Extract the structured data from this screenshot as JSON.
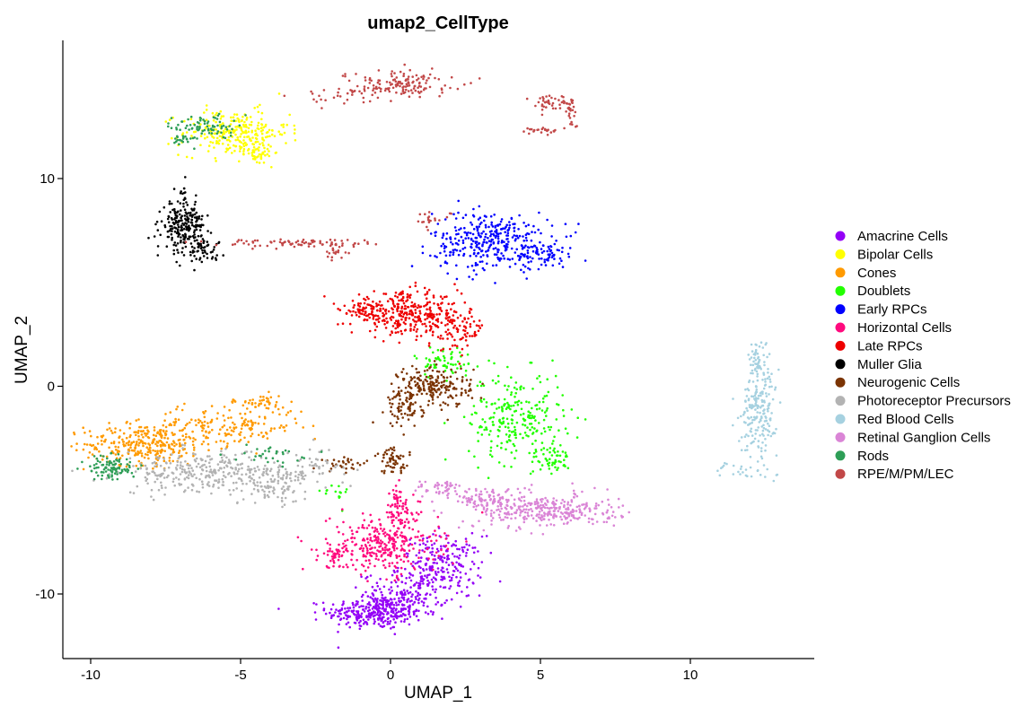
{
  "chart_data": {
    "type": "scatter",
    "title": "umap2_CellType",
    "xlabel": "UMAP_1",
    "ylabel": "UMAP_2",
    "xlim": [
      -11,
      14
    ],
    "ylim": [
      -13,
      16.5
    ],
    "x_ticks": [
      -10,
      -5,
      0,
      5,
      10
    ],
    "y_ticks": [
      -10,
      0,
      10
    ],
    "x_tick_labels": [
      "-10",
      "-5",
      "0",
      "5",
      "10"
    ],
    "y_tick_labels": [
      "-10",
      "0",
      "10"
    ],
    "grid": false,
    "legend_position": "right",
    "series": [
      {
        "name": "Amacrine Cells",
        "color": "#9400F7",
        "clusters": [
          {
            "cx": -0.5,
            "cy": -10.9,
            "sx": 0.8,
            "sy": 0.4,
            "n": 300
          },
          {
            "cx": 1.7,
            "cy": -8.6,
            "sx": 0.7,
            "sy": 0.7,
            "n": 220
          },
          {
            "cx": 0.5,
            "cy": -10.0,
            "sx": 0.7,
            "sy": 0.5,
            "n": 150
          }
        ]
      },
      {
        "name": "Bipolar Cells",
        "color": "#FFFF00",
        "clusters": [
          {
            "cx": -5.2,
            "cy": 12.2,
            "sx": 0.9,
            "sy": 0.55,
            "n": 260
          },
          {
            "cx": -4.5,
            "cy": 11.3,
            "sx": 0.3,
            "sy": 0.3,
            "n": 50
          }
        ]
      },
      {
        "name": "Cones",
        "color": "#FF9A00",
        "clusters": [
          {
            "cx": -8.2,
            "cy": -2.8,
            "sx": 1.0,
            "sy": 0.5,
            "n": 300
          },
          {
            "cx": -5.5,
            "cy": -1.9,
            "sx": 1.3,
            "sy": 0.5,
            "n": 180
          },
          {
            "cx": -4.3,
            "cy": -0.8,
            "sx": 0.4,
            "sy": 0.2,
            "n": 40
          }
        ]
      },
      {
        "name": "Doublets",
        "color": "#22FF00",
        "clusters": [
          {
            "cx": 4.2,
            "cy": -1.5,
            "sx": 0.8,
            "sy": 1.1,
            "n": 250
          },
          {
            "cx": 5.4,
            "cy": -3.5,
            "sx": 0.3,
            "sy": 0.3,
            "n": 50
          },
          {
            "cx": 1.8,
            "cy": 1.2,
            "sx": 0.5,
            "sy": 0.4,
            "n": 60
          },
          {
            "cx": -2.0,
            "cy": -5.2,
            "sx": 0.3,
            "sy": 0.3,
            "n": 15
          }
        ]
      },
      {
        "name": "Early RPCs",
        "color": "#0000FF",
        "clusters": [
          {
            "cx": 3.4,
            "cy": 7.0,
            "sx": 1.0,
            "sy": 0.7,
            "n": 350
          },
          {
            "cx": 5.2,
            "cy": 6.3,
            "sx": 0.5,
            "sy": 0.3,
            "n": 60
          }
        ]
      },
      {
        "name": "Horizontal Cells",
        "color": "#FF0A7E",
        "clusters": [
          {
            "cx": -0.2,
            "cy": -7.6,
            "sx": 0.9,
            "sy": 0.7,
            "n": 320
          },
          {
            "cx": -1.8,
            "cy": -8.1,
            "sx": 0.3,
            "sy": 0.3,
            "n": 40
          },
          {
            "cx": 0.2,
            "cy": -5.8,
            "sx": 0.3,
            "sy": 0.5,
            "n": 60
          }
        ]
      },
      {
        "name": "Late RPCs",
        "color": "#EE0000",
        "clusters": [
          {
            "cx": 0.5,
            "cy": 3.5,
            "sx": 0.9,
            "sy": 0.5,
            "n": 320
          },
          {
            "cx": 2.2,
            "cy": 2.8,
            "sx": 0.5,
            "sy": 0.5,
            "n": 100
          },
          {
            "cx": -1.0,
            "cy": 3.7,
            "sx": 0.3,
            "sy": 0.2,
            "n": 40
          }
        ]
      },
      {
        "name": "Muller Glia",
        "color": "#000000",
        "clusters": [
          {
            "cx": -6.9,
            "cy": 7.7,
            "sx": 0.35,
            "sy": 0.6,
            "n": 220
          },
          {
            "cx": -6.3,
            "cy": 6.6,
            "sx": 0.35,
            "sy": 0.25,
            "n": 50
          },
          {
            "cx": -6.9,
            "cy": 9.3,
            "sx": 0.05,
            "sy": 0.4,
            "n": 12
          }
        ]
      },
      {
        "name": "Neurogenic Cells",
        "color": "#7B3404",
        "clusters": [
          {
            "cx": 1.5,
            "cy": 0.0,
            "sx": 0.6,
            "sy": 0.5,
            "n": 200
          },
          {
            "cx": 0.5,
            "cy": -1.0,
            "sx": 0.3,
            "sy": 0.5,
            "n": 80
          },
          {
            "cx": 0.1,
            "cy": -3.6,
            "sx": 0.3,
            "sy": 0.3,
            "n": 60
          },
          {
            "cx": -1.5,
            "cy": -3.7,
            "sx": 0.4,
            "sy": 0.2,
            "n": 30
          }
        ]
      },
      {
        "name": "Photoreceptor Precursors",
        "color": "#B3B3B3",
        "clusters": [
          {
            "cx": -6.0,
            "cy": -4.2,
            "sx": 1.5,
            "sy": 0.5,
            "n": 330
          },
          {
            "cx": -3.8,
            "cy": -4.8,
            "sx": 0.5,
            "sy": 0.4,
            "n": 80
          },
          {
            "cx": -2.5,
            "cy": -3.8,
            "sx": 0.5,
            "sy": 0.4,
            "n": 40
          }
        ]
      },
      {
        "name": "Red Blood Cells",
        "color": "#A6D1E0",
        "clusters": [
          {
            "cx": 12.3,
            "cy": -1.0,
            "sx": 0.3,
            "sy": 1.2,
            "n": 220
          },
          {
            "cx": 12.2,
            "cy": 1.4,
            "sx": 0.1,
            "sy": 0.4,
            "n": 30
          },
          {
            "cx": 11.6,
            "cy": -4.0,
            "sx": 0.4,
            "sy": 0.2,
            "n": 20
          }
        ]
      },
      {
        "name": "Retinal Ganglion Cells",
        "color": "#DA85D6",
        "clusters": [
          {
            "cx": 5.2,
            "cy": -6.0,
            "sx": 1.2,
            "sy": 0.4,
            "n": 320
          },
          {
            "cx": 3.3,
            "cy": -5.4,
            "sx": 0.7,
            "sy": 0.3,
            "n": 100
          },
          {
            "cx": 1.7,
            "cy": -4.9,
            "sx": 0.4,
            "sy": 0.2,
            "n": 40
          }
        ]
      },
      {
        "name": "Rods",
        "color": "#2E9E57",
        "clusters": [
          {
            "cx": -9.3,
            "cy": -3.9,
            "sx": 0.4,
            "sy": 0.3,
            "n": 100
          },
          {
            "cx": -6.2,
            "cy": 12.5,
            "sx": 0.5,
            "sy": 0.3,
            "n": 80
          },
          {
            "cx": -7.0,
            "cy": 11.9,
            "sx": 0.2,
            "sy": 0.1,
            "n": 20
          },
          {
            "cx": -4.0,
            "cy": -3.3,
            "sx": 0.6,
            "sy": 0.2,
            "n": 30
          }
        ]
      },
      {
        "name": "RPE/M/PM/LEC",
        "color": "#C24848",
        "clusters": [
          {
            "cx": 0.3,
            "cy": 14.6,
            "sx": 0.9,
            "sy": 0.3,
            "n": 140
          },
          {
            "cx": -1.7,
            "cy": 14.0,
            "sx": 0.8,
            "sy": 0.2,
            "n": 30
          },
          {
            "cx": 5.3,
            "cy": 13.7,
            "sx": 0.35,
            "sy": 0.2,
            "n": 40
          },
          {
            "cx": 6.0,
            "cy": 13.2,
            "sx": 0.1,
            "sy": 0.4,
            "n": 25
          },
          {
            "cx": 5.1,
            "cy": 12.3,
            "sx": 0.4,
            "sy": 0.1,
            "n": 25
          },
          {
            "cx": -3.2,
            "cy": 6.9,
            "sx": 1.3,
            "sy": 0.1,
            "n": 80
          },
          {
            "cx": -1.8,
            "cy": 6.5,
            "sx": 0.3,
            "sy": 0.2,
            "n": 20
          },
          {
            "cx": 1.4,
            "cy": 8.0,
            "sx": 0.4,
            "sy": 0.2,
            "n": 20
          }
        ]
      }
    ]
  }
}
